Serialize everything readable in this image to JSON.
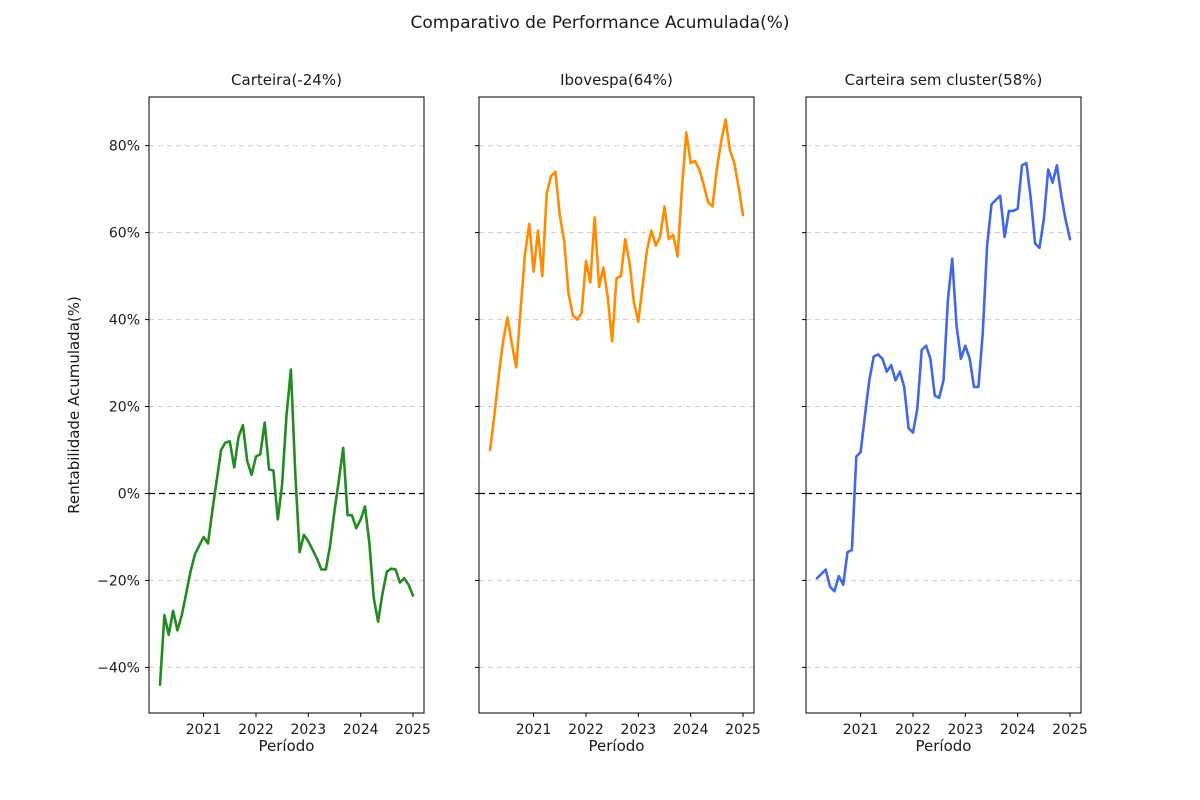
{
  "chart_data": {
    "type": "line",
    "title": "Comparativo de Performance Acumulada(%)",
    "xlabel": "Período",
    "ylabel": "Rentabilidade Acumulada(%)",
    "x": [
      "2020-03",
      "2020-04",
      "2020-05",
      "2020-06",
      "2020-07",
      "2020-08",
      "2020-09",
      "2020-10",
      "2020-11",
      "2020-12",
      "2021-01",
      "2021-02",
      "2021-03",
      "2021-04",
      "2021-05",
      "2021-06",
      "2021-07",
      "2021-08",
      "2021-09",
      "2021-10",
      "2021-11",
      "2021-12",
      "2022-01",
      "2022-02",
      "2022-03",
      "2022-04",
      "2022-05",
      "2022-06",
      "2022-07",
      "2022-08",
      "2022-09",
      "2022-10",
      "2022-11",
      "2022-12",
      "2023-01",
      "2023-02",
      "2023-03",
      "2023-04",
      "2023-05",
      "2023-06",
      "2023-07",
      "2023-08",
      "2023-09",
      "2023-10",
      "2023-11",
      "2023-12",
      "2024-01",
      "2024-02",
      "2024-03",
      "2024-04",
      "2024-05",
      "2024-06",
      "2024-07",
      "2024-08",
      "2024-09",
      "2024-10",
      "2024-11",
      "2024-12",
      "2025-01"
    ],
    "x_tick_labels": [
      "2021",
      "2022",
      "2023",
      "2024",
      "2025"
    ],
    "x_tick_month_indices": [
      10,
      22,
      34,
      46,
      58
    ],
    "y_ticks": [
      80,
      60,
      40,
      20,
      0,
      -20,
      -40
    ],
    "y_tick_labels": [
      "80%",
      "60%",
      "40%",
      "20%",
      "0%",
      "−20%",
      "−40%"
    ],
    "ylim": [
      -50.5,
      91.2
    ],
    "grid": {
      "on": true,
      "style": "dashed",
      "color": "#cdcdcd"
    },
    "zero_line": {
      "value": 0,
      "style": "dashed",
      "color": "#000000"
    },
    "axis_color": "#000000",
    "subplots": [
      {
        "title": "Carteira(-24%)",
        "series_name": "Carteira",
        "final_value_pct": -24,
        "color": "#228B22",
        "values": [
          -44,
          -28,
          -32.5,
          -27,
          -31.5,
          -28,
          -23,
          -18,
          -14,
          -12,
          -10,
          -11.5,
          -4,
          3,
          10,
          11.7,
          12,
          6,
          13,
          15.7,
          7.5,
          4.3,
          8.5,
          9,
          16.3,
          5.5,
          5.3,
          -6,
          2,
          18,
          28.5,
          5,
          -13.5,
          -9.5,
          -11,
          -13,
          -15,
          -17.5,
          -17.5,
          -12,
          -4,
          3,
          10.5,
          -5,
          -5,
          -8,
          -6,
          -3,
          -11.5,
          -24,
          -29.5,
          -23,
          -18,
          -17.3,
          -17.5,
          -20.5,
          -19.5,
          -21,
          -23.5
        ]
      },
      {
        "title": "Ibovespa(64%)",
        "series_name": "Ibovespa",
        "final_value_pct": 64,
        "color": "#FF8C00",
        "values": [
          10,
          18,
          27,
          35,
          40.5,
          34.5,
          29,
          42,
          55,
          62,
          51,
          60.5,
          50,
          69,
          73,
          74,
          64,
          58,
          46,
          41,
          40,
          41.5,
          53.5,
          48.5,
          63.5,
          47.5,
          52,
          45,
          35,
          49.5,
          50,
          58.5,
          53,
          44,
          39.5,
          48,
          56,
          60.5,
          57,
          59,
          66,
          58.5,
          59.5,
          54.5,
          70,
          83,
          76,
          76.5,
          74.5,
          71,
          67,
          66,
          74.5,
          81,
          86,
          79,
          76,
          70.5,
          64
        ]
      },
      {
        "title": "Carteira sem cluster(58%)",
        "series_name": "Carteira sem cluster",
        "final_value_pct": 58,
        "color": "#4169E1",
        "values": [
          -19.5,
          -18.5,
          -17.5,
          -21.5,
          -22.5,
          -19,
          -21,
          -13.5,
          -13,
          8.5,
          9.5,
          18,
          26,
          31.5,
          32,
          31,
          28,
          29.5,
          26,
          28,
          24.5,
          15,
          14,
          19.5,
          33,
          34,
          31,
          22.5,
          22,
          26,
          44.5,
          54,
          38.5,
          31,
          34,
          31,
          24.5,
          24.5,
          37,
          57,
          66.5,
          67.5,
          68.5,
          59,
          65,
          65,
          65.5,
          75.5,
          76,
          68,
          57.5,
          56.5,
          63,
          74.5,
          71.5,
          75.5,
          68.5,
          63,
          58.5
        ]
      }
    ]
  }
}
